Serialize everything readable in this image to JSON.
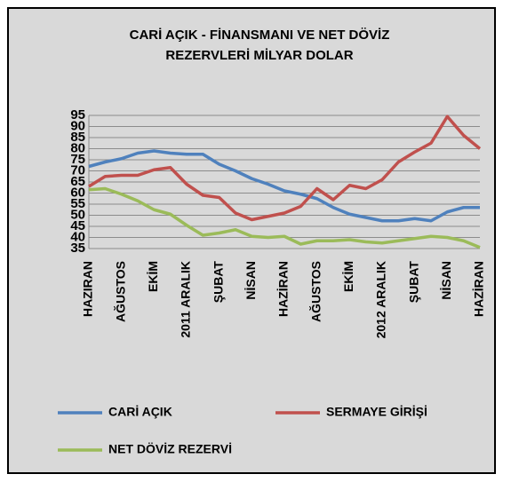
{
  "chart_data": {
    "type": "line",
    "title": "CARİ AÇIK - FİNANSMANI VE NET DÖVİZ\nREZERVLERİ  MİLYAR DOLAR",
    "categories": [
      "HAZIRAN",
      null,
      "AĞUSTOS",
      null,
      "EKİM",
      null,
      "2011 ARALIK",
      null,
      "ŞUBAT",
      null,
      "NİSAN",
      null,
      "HAZİRAN",
      null,
      "AĞUSTOS",
      null,
      "EKİM",
      null,
      "2012 ARALIK",
      null,
      "ŞUBAT",
      null,
      "NİSAN",
      null,
      "HAZİRAN"
    ],
    "series": [
      {
        "name": "CARİ AÇIK",
        "color": "#4f81bd",
        "values": [
          72,
          74,
          75.5,
          78,
          79,
          78,
          77.5,
          77.5,
          73,
          70,
          66.5,
          64,
          61,
          59.5,
          57.5,
          53.5,
          50.5,
          49,
          47.5,
          47.5,
          48.5,
          47.5,
          51.5,
          53.5,
          53.5
        ]
      },
      {
        "name": "SERMAYE GİRİŞİ",
        "color": "#c0504d",
        "values": [
          63,
          67.5,
          68,
          68,
          70.5,
          71.5,
          64,
          59,
          58,
          51,
          48,
          49.5,
          51,
          54,
          62,
          57,
          63.5,
          62,
          66,
          74,
          78.5,
          82.5,
          94.5,
          86,
          80
        ]
      },
      {
        "name": "NET DÖVİZ REZERVİ",
        "color": "#9bbb59",
        "values": [
          61.5,
          62,
          59.5,
          56.5,
          52.5,
          50.5,
          45.5,
          41,
          42,
          43.5,
          40.5,
          40,
          40.5,
          37,
          38.5,
          38.5,
          39,
          38,
          37.5,
          38.5,
          39.5,
          40.5,
          40,
          38.5,
          35.5
        ]
      }
    ],
    "ylim": [
      35,
      95
    ],
    "yticks": [
      35,
      40,
      45,
      50,
      55,
      60,
      65,
      70,
      75,
      80,
      85,
      90,
      95
    ],
    "grid": true
  }
}
